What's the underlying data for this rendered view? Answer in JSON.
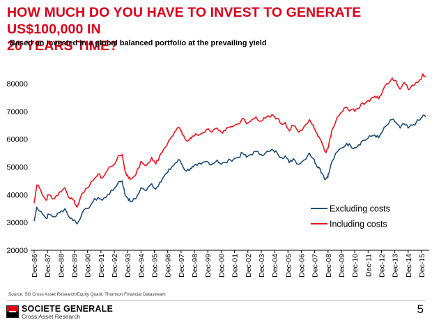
{
  "header": {
    "title": "HOW MUCH DO YOU HAVE TO INVEST TO GENERATE US$100,000 IN\n20 YEARS TIME?",
    "subtitle": "Based on invested in a global balanced portfolio at the prevailing yield"
  },
  "footer": {
    "source": "Source: SG Cross Asset Research/Equity Quant, Thomson Financial Datastream",
    "brand": "SOCIETE GENERALE",
    "brand_sub": "Cross Asset Research",
    "page_number": "5"
  },
  "chart_data": {
    "type": "line",
    "title": "",
    "xlabel": "",
    "ylabel": "",
    "ylim": [
      20000,
      85000
    ],
    "yticks": [
      20000,
      30000,
      40000,
      50000,
      60000,
      70000,
      80000
    ],
    "xticks": [
      "Dec-86",
      "Dec-87",
      "Dec-88",
      "Dec-89",
      "Dec-90",
      "Dec-91",
      "Dec-92",
      "Dec-93",
      "Dec-94",
      "Dec-95",
      "Dec-96",
      "Dec-97",
      "Dec-98",
      "Dec-99",
      "Dec-00",
      "Dec-01",
      "Dec-02",
      "Dec-03",
      "Dec-04",
      "Dec-05",
      "Dec-06",
      "Dec-07",
      "Dec-08",
      "Dec-09",
      "Dec-10",
      "Dec-11",
      "Dec-12",
      "Dec-13",
      "Dec-14",
      "Dec-15"
    ],
    "legend_position": "lower-right",
    "grid": false,
    "x": [
      1986.9,
      1987.1,
      1987.4,
      1987.8,
      1988.0,
      1988.4,
      1988.8,
      1989.2,
      1989.6,
      1989.9,
      1990.1,
      1990.5,
      1990.9,
      1991.3,
      1991.7,
      1992.0,
      1992.4,
      1992.8,
      1993.2,
      1993.5,
      1993.7,
      1993.9,
      1994.1,
      1994.5,
      1994.9,
      1995.3,
      1995.7,
      1996.0,
      1996.3,
      1996.6,
      1996.9,
      1997.2,
      1997.5,
      1997.8,
      1998.0,
      1998.3,
      1998.6,
      1998.8,
      1999.1,
      1999.4,
      1999.8,
      2000.2,
      2000.6,
      2000.9,
      2001.2,
      2001.6,
      2001.9,
      2002.2,
      2002.5,
      2002.8,
      2003.1,
      2003.5,
      2003.9,
      2004.2,
      2004.5,
      2004.8,
      2005.1,
      2005.4,
      2005.7,
      2006.0,
      2006.3,
      2006.7,
      2007.1,
      2007.5,
      2007.8,
      2008.0,
      2008.2,
      2008.5,
      2008.7,
      2008.85,
      2008.95,
      2009.2,
      2009.6,
      2010.0,
      2010.3,
      2010.6,
      2010.9,
      2011.2,
      2011.5,
      2011.8,
      2012.1,
      2012.4,
      2012.7,
      2013.0,
      2013.3,
      2013.7,
      2014.0,
      2014.3,
      2014.6,
      2014.9,
      2015.2,
      2015.5,
      2015.8,
      2016.0,
      2016.2
    ],
    "series": [
      {
        "name": "Excluding costs",
        "color": "#1f4e79",
        "values": [
          30500,
          35500,
          34000,
          31500,
          33000,
          32000,
          33500,
          35000,
          31500,
          31000,
          29500,
          33500,
          35000,
          37500,
          39000,
          38000,
          40000,
          41500,
          44500,
          45000,
          40000,
          39000,
          37500,
          38500,
          42500,
          41500,
          44000,
          42000,
          44500,
          46500,
          48000,
          50000,
          51500,
          52500,
          50500,
          48500,
          49500,
          50000,
          50500,
          51000,
          52000,
          51000,
          52500,
          51000,
          51500,
          52500,
          53000,
          53500,
          55000,
          53500,
          54500,
          55500,
          54500,
          55000,
          55500,
          56000,
          55000,
          53500,
          54000,
          51500,
          53000,
          51000,
          52500,
          55000,
          53000,
          51000,
          50000,
          47500,
          45500,
          46500,
          47500,
          52000,
          55500,
          57000,
          58500,
          57500,
          57000,
          58000,
          59500,
          60000,
          61000,
          61500,
          60500,
          63000,
          65000,
          67000,
          66000,
          64000,
          65500,
          64000,
          65000,
          66000,
          67000,
          68500,
          68000
        ]
      },
      {
        "name": "Including costs",
        "color": "#e8151b",
        "values": [
          37000,
          43500,
          41500,
          38000,
          40000,
          38500,
          41000,
          42500,
          38500,
          38000,
          35500,
          40500,
          42500,
          45000,
          47500,
          46000,
          49000,
          50500,
          54000,
          54500,
          48500,
          47000,
          45500,
          47000,
          52000,
          50500,
          53500,
          51000,
          54000,
          56500,
          58500,
          61000,
          63000,
          64000,
          61500,
          59500,
          60500,
          61000,
          61500,
          62000,
          63500,
          62500,
          64000,
          62500,
          63000,
          64500,
          65000,
          65500,
          67500,
          65500,
          66500,
          68000,
          66500,
          67500,
          68000,
          68500,
          67500,
          65500,
          66000,
          63000,
          65000,
          62500,
          64500,
          67000,
          65000,
          62500,
          61000,
          58000,
          55500,
          56500,
          58000,
          63500,
          68000,
          70000,
          71500,
          70500,
          70000,
          71000,
          73000,
          73500,
          74500,
          75500,
          74500,
          77500,
          80000,
          82000,
          81000,
          78000,
          80500,
          78000,
          79500,
          80500,
          81500,
          83500,
          82500
        ]
      }
    ]
  }
}
